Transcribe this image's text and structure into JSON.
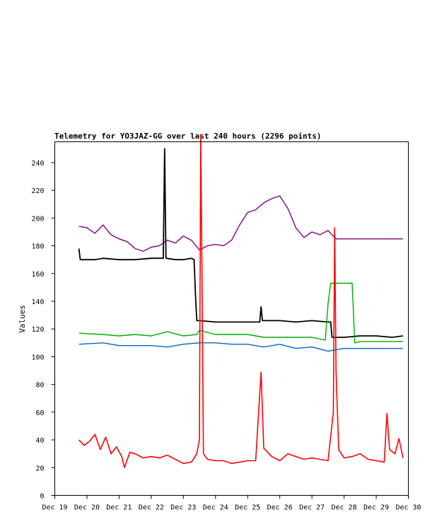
{
  "chart_data": {
    "type": "line",
    "title": "Telemetry for YO3JAZ-GG over last 240 hours (2296 points)",
    "xlabel": "",
    "ylabel": "Values",
    "x_unit": "date",
    "xlim": [
      "Dec 19",
      "Dec 30"
    ],
    "ylim": [
      0,
      255
    ],
    "x_ticks": [
      "Dec 19",
      "Dec 20",
      "Dec 21",
      "Dec 22",
      "Dec 23",
      "Dec 24",
      "Dec 25",
      "Dec 26",
      "Dec 27",
      "Dec 28",
      "Dec 29",
      "Dec 30"
    ],
    "y_ticks": [
      0,
      20,
      40,
      60,
      80,
      100,
      120,
      140,
      160,
      180,
      200,
      220,
      240
    ],
    "grid": false,
    "legend": "none",
    "series": [
      {
        "color": "#800080",
        "points": [
          [
            "Dec 19 18:00",
            194
          ],
          [
            "Dec 20 00:00",
            193
          ],
          [
            "Dec 20 06:00",
            189
          ],
          [
            "Dec 20 12:00",
            195
          ],
          [
            "Dec 20 18:00",
            188
          ],
          [
            "Dec 21 00:00",
            185
          ],
          [
            "Dec 21 06:00",
            183
          ],
          [
            "Dec 21 12:00",
            178
          ],
          [
            "Dec 21 18:00",
            176
          ],
          [
            "Dec 22 00:00",
            179
          ],
          [
            "Dec 22 06:00",
            180
          ],
          [
            "Dec 22 12:00",
            184
          ],
          [
            "Dec 22 18:00",
            182
          ],
          [
            "Dec 23 00:00",
            187
          ],
          [
            "Dec 23 06:00",
            184
          ],
          [
            "Dec 23 12:00",
            177
          ],
          [
            "Dec 23 18:00",
            180
          ],
          [
            "Dec 24 00:00",
            181
          ],
          [
            "Dec 24 06:00",
            180
          ],
          [
            "Dec 24 12:00",
            184
          ],
          [
            "Dec 24 18:00",
            195
          ],
          [
            "Dec 25 00:00",
            204
          ],
          [
            "Dec 25 06:00",
            206
          ],
          [
            "Dec 25 12:00",
            211
          ],
          [
            "Dec 25 18:00",
            214
          ],
          [
            "Dec 26 00:00",
            216
          ],
          [
            "Dec 26 06:00",
            207
          ],
          [
            "Dec 26 12:00",
            193
          ],
          [
            "Dec 26 18:00",
            186
          ],
          [
            "Dec 27 00:00",
            190
          ],
          [
            "Dec 27 06:00",
            188
          ],
          [
            "Dec 27 12:00",
            191
          ],
          [
            "Dec 27 18:00",
            185
          ],
          [
            "Dec 28 00:00",
            185
          ],
          [
            "Dec 28 12:00",
            185
          ],
          [
            "Dec 29 00:00",
            185
          ],
          [
            "Dec 29 12:00",
            185
          ],
          [
            "Dec 29 20:00",
            185
          ]
        ]
      },
      {
        "color": "#000000",
        "points": [
          [
            "Dec 19 18:00",
            178
          ],
          [
            "Dec 19 19:00",
            170
          ],
          [
            "Dec 20 06:00",
            170
          ],
          [
            "Dec 20 12:00",
            171
          ],
          [
            "Dec 21 00:00",
            170
          ],
          [
            "Dec 21 12:00",
            170
          ],
          [
            "Dec 22 00:00",
            171
          ],
          [
            "Dec 22 09:00",
            171
          ],
          [
            "Dec 22 10:00",
            250
          ],
          [
            "Dec 22 11:00",
            171
          ],
          [
            "Dec 22 18:00",
            170
          ],
          [
            "Dec 23 00:00",
            170
          ],
          [
            "Dec 23 06:00",
            171
          ],
          [
            "Dec 23 08:00",
            170
          ],
          [
            "Dec 23 09:00",
            145
          ],
          [
            "Dec 23 10:00",
            126
          ],
          [
            "Dec 23 12:00",
            126
          ],
          [
            "Dec 24 00:00",
            125
          ],
          [
            "Dec 24 12:00",
            125
          ],
          [
            "Dec 25 00:00",
            125
          ],
          [
            "Dec 25 09:00",
            125
          ],
          [
            "Dec 25 10:00",
            136
          ],
          [
            "Dec 25 11:00",
            126
          ],
          [
            "Dec 26 00:00",
            126
          ],
          [
            "Dec 26 12:00",
            125
          ],
          [
            "Dec 27 00:00",
            126
          ],
          [
            "Dec 27 12:00",
            125
          ],
          [
            "Dec 27 14:00",
            125
          ],
          [
            "Dec 27 15:00",
            114
          ],
          [
            "Dec 28 00:00",
            114
          ],
          [
            "Dec 28 12:00",
            115
          ],
          [
            "Dec 29 00:00",
            115
          ],
          [
            "Dec 29 12:00",
            114
          ],
          [
            "Dec 29 20:00",
            115
          ]
        ]
      },
      {
        "color": "#00aa00",
        "points": [
          [
            "Dec 19 18:00",
            117
          ],
          [
            "Dec 20 12:00",
            116
          ],
          [
            "Dec 21 00:00",
            115
          ],
          [
            "Dec 21 12:00",
            116
          ],
          [
            "Dec 22 00:00",
            115
          ],
          [
            "Dec 22 12:00",
            118
          ],
          [
            "Dec 23 00:00",
            115
          ],
          [
            "Dec 23 10:00",
            116
          ],
          [
            "Dec 23 12:00",
            119
          ],
          [
            "Dec 24 00:00",
            116
          ],
          [
            "Dec 24 12:00",
            116
          ],
          [
            "Dec 25 00:00",
            116
          ],
          [
            "Dec 25 12:00",
            114
          ],
          [
            "Dec 26 00:00",
            114
          ],
          [
            "Dec 26 12:00",
            114
          ],
          [
            "Dec 27 00:00",
            114
          ],
          [
            "Dec 27 10:00",
            112
          ],
          [
            "Dec 27 12:00",
            138
          ],
          [
            "Dec 27 14:00",
            153
          ],
          [
            "Dec 28 00:00",
            153
          ],
          [
            "Dec 28 06:00",
            153
          ],
          [
            "Dec 28 08:00",
            110
          ],
          [
            "Dec 28 12:00",
            111
          ],
          [
            "Dec 29 00:00",
            111
          ],
          [
            "Dec 29 12:00",
            111
          ],
          [
            "Dec 29 20:00",
            111
          ]
        ]
      },
      {
        "color": "#0066cc",
        "points": [
          [
            "Dec 19 18:00",
            109
          ],
          [
            "Dec 20 12:00",
            110
          ],
          [
            "Dec 21 00:00",
            108
          ],
          [
            "Dec 21 12:00",
            108
          ],
          [
            "Dec 22 00:00",
            108
          ],
          [
            "Dec 22 12:00",
            107
          ],
          [
            "Dec 23 00:00",
            109
          ],
          [
            "Dec 23 12:00",
            110
          ],
          [
            "Dec 24 00:00",
            110
          ],
          [
            "Dec 24 12:00",
            109
          ],
          [
            "Dec 25 00:00",
            109
          ],
          [
            "Dec 25 12:00",
            107
          ],
          [
            "Dec 26 00:00",
            109
          ],
          [
            "Dec 26 12:00",
            106
          ],
          [
            "Dec 27 00:00",
            107
          ],
          [
            "Dec 27 12:00",
            104
          ],
          [
            "Dec 28 00:00",
            106
          ],
          [
            "Dec 28 12:00",
            106
          ],
          [
            "Dec 29 00:00",
            106
          ],
          [
            "Dec 29 12:00",
            106
          ],
          [
            "Dec 29 20:00",
            106
          ]
        ]
      },
      {
        "color": "#ff0000",
        "points": [
          [
            "Dec 19 18:00",
            40
          ],
          [
            "Dec 19 22:00",
            36
          ],
          [
            "Dec 20 02:00",
            39
          ],
          [
            "Dec 20 06:00",
            44
          ],
          [
            "Dec 20 10:00",
            33
          ],
          [
            "Dec 20 14:00",
            42
          ],
          [
            "Dec 20 18:00",
            30
          ],
          [
            "Dec 20 22:00",
            35
          ],
          [
            "Dec 21 02:00",
            28
          ],
          [
            "Dec 21 04:00",
            20
          ],
          [
            "Dec 21 08:00",
            31
          ],
          [
            "Dec 21 12:00",
            30
          ],
          [
            "Dec 21 18:00",
            27
          ],
          [
            "Dec 22 00:00",
            28
          ],
          [
            "Dec 22 06:00",
            27
          ],
          [
            "Dec 22 12:00",
            29
          ],
          [
            "Dec 22 18:00",
            26
          ],
          [
            "Dec 23 00:00",
            23
          ],
          [
            "Dec 23 06:00",
            24
          ],
          [
            "Dec 23 10:00",
            30
          ],
          [
            "Dec 23 12:00",
            40
          ],
          [
            "Dec 23 13:00",
            260
          ],
          [
            "Dec 23 14:00",
            150
          ],
          [
            "Dec 23 15:00",
            30
          ],
          [
            "Dec 23 18:00",
            26
          ],
          [
            "Dec 24 00:00",
            25
          ],
          [
            "Dec 24 06:00",
            25
          ],
          [
            "Dec 24 12:00",
            23
          ],
          [
            "Dec 24 18:00",
            24
          ],
          [
            "Dec 25 00:00",
            25
          ],
          [
            "Dec 25 06:00",
            25
          ],
          [
            "Dec 25 10:00",
            89
          ],
          [
            "Dec 25 12:00",
            34
          ],
          [
            "Dec 25 18:00",
            28
          ],
          [
            "Dec 26 00:00",
            25
          ],
          [
            "Dec 26 06:00",
            30
          ],
          [
            "Dec 26 12:00",
            28
          ],
          [
            "Dec 26 18:00",
            26
          ],
          [
            "Dec 27 00:00",
            27
          ],
          [
            "Dec 27 06:00",
            26
          ],
          [
            "Dec 27 12:00",
            25
          ],
          [
            "Dec 27 16:00",
            60
          ],
          [
            "Dec 27 17:00",
            193
          ],
          [
            "Dec 27 18:00",
            90
          ],
          [
            "Dec 27 20:00",
            33
          ],
          [
            "Dec 28 00:00",
            27
          ],
          [
            "Dec 28 06:00",
            28
          ],
          [
            "Dec 28 12:00",
            30
          ],
          [
            "Dec 28 18:00",
            26
          ],
          [
            "Dec 29 00:00",
            25
          ],
          [
            "Dec 29 06:00",
            24
          ],
          [
            "Dec 29 08:00",
            59
          ],
          [
            "Dec 29 10:00",
            33
          ],
          [
            "Dec 29 14:00",
            30
          ],
          [
            "Dec 29 17:00",
            41
          ],
          [
            "Dec 29 20:00",
            27
          ]
        ]
      }
    ]
  }
}
